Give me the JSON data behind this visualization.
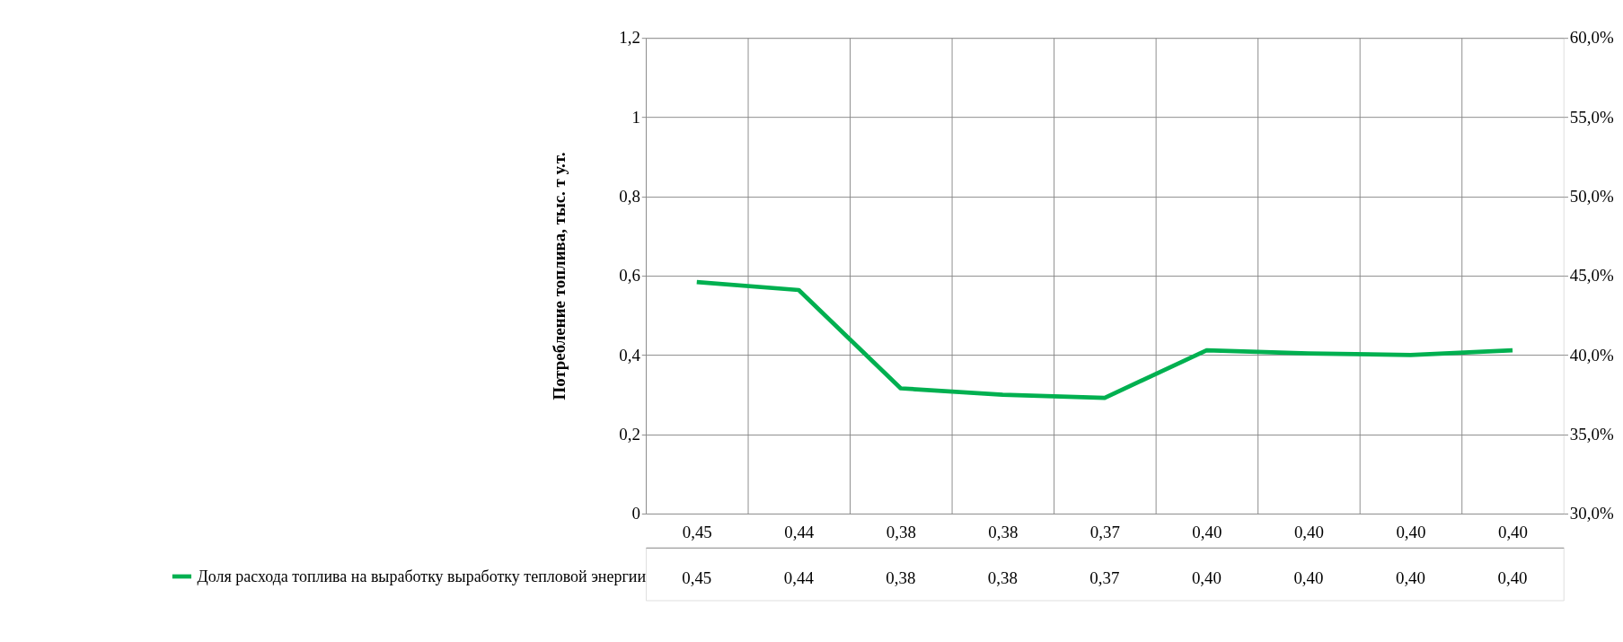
{
  "chart_data": {
    "type": "line",
    "ylabel": "Потребление топлива, тыс. т у.т.",
    "categories": [
      "0,45",
      "0,44",
      "0,38",
      "0,38",
      "0,37",
      "0,40",
      "0,40",
      "0,40",
      "0,40"
    ],
    "series": [
      {
        "name": "Доля расхода топлива на выработку выработку тепловой энергии",
        "color": "#00b050",
        "axis": "y2",
        "values": [
          0.446,
          0.441,
          0.379,
          0.375,
          0.373,
          0.403,
          0.401,
          0.4,
          0.403
        ],
        "value_labels": [
          "0,45",
          "0,44",
          "0,38",
          "0,38",
          "0,37",
          "0,40",
          "0,40",
          "0,40",
          "0,40"
        ]
      }
    ],
    "ylim": [
      0,
      1.2
    ],
    "yticks": [
      0,
      {
        "value": 0.2,
        "label": "0,2"
      },
      {
        "value": 0.4,
        "label": "0,4"
      },
      {
        "value": 0.6,
        "label": "0,6"
      },
      {
        "value": 0.8,
        "label": "0,8"
      },
      1,
      {
        "value": 1.2,
        "label": "1,2"
      }
    ],
    "y2lim": [
      0.3,
      0.6
    ],
    "y2ticks": [
      {
        "value": 0.3,
        "label": "30,0%"
      },
      {
        "value": 0.35,
        "label": "35,0%"
      },
      {
        "value": 0.4,
        "label": "40,0%"
      },
      {
        "value": 0.45,
        "label": "45,0%"
      },
      {
        "value": 0.5,
        "label": "50,0%"
      },
      {
        "value": 0.55,
        "label": "55,0%"
      },
      {
        "value": 0.6,
        "label": "60,0%"
      }
    ],
    "grid": true,
    "legend": "bottom left",
    "marker": "none",
    "line_style": "solid"
  }
}
